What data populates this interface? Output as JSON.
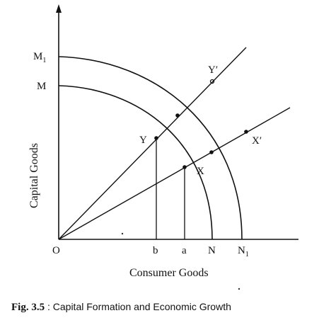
{
  "diagram": {
    "x_axis_title": "Consumer Goods",
    "y_axis_title": "Capital Goods",
    "origin_label": "O",
    "y_labels": {
      "m1": "M",
      "m1_sub": "1",
      "m": "M"
    },
    "x_labels": {
      "b": "b",
      "a": "a",
      "n": "N",
      "n1": "N",
      "n1_sub": "1"
    },
    "point_labels": {
      "y": "Y",
      "y_prime": "Y′",
      "x": "X",
      "x_prime": "X′"
    },
    "curves": [
      "MN",
      "M1N1"
    ],
    "rays": [
      "OY",
      "OX"
    ]
  },
  "caption": {
    "fig_number": "Fig. 3.5",
    "separator": " : ",
    "text": "Capital Formation and Economic Growth"
  }
}
